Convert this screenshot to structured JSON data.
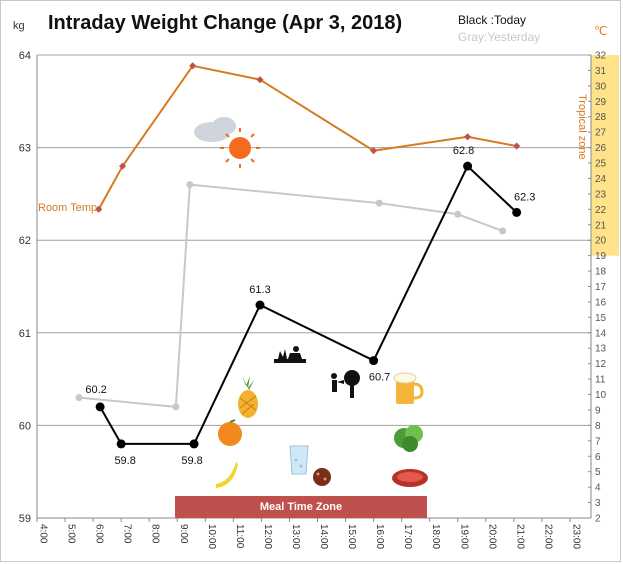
{
  "chart_data": {
    "type": "line",
    "title": "Intraday Weight Change (Apr 3, 2018)",
    "legend": {
      "today": "Black :Today",
      "yesterday": "Gray:Yesterday"
    },
    "left_axis": {
      "unit": "kg",
      "ylim": [
        59,
        64
      ],
      "ticks": [
        "59",
        "60",
        "61",
        "62",
        "63",
        "64"
      ]
    },
    "right_axis": {
      "unit": "℃",
      "ylim": [
        2,
        32
      ],
      "ticks": [
        "2",
        "3",
        "4",
        "5",
        "6",
        "7",
        "8",
        "9",
        "10",
        "11",
        "12",
        "13",
        "14",
        "15",
        "16",
        "17",
        "18",
        "19",
        "20",
        "21",
        "22",
        "23",
        "24",
        "25",
        "26",
        "27",
        "28",
        "29",
        "30",
        "31",
        "32"
      ],
      "highlight_range": [
        19,
        32
      ],
      "highlight_label": "Tropical zone"
    },
    "x_axis": {
      "ticks": [
        "4:00",
        "5:00",
        "6:00",
        "7:00",
        "8:00",
        "9:00",
        "10:00",
        "11:00",
        "12:00",
        "13:00",
        "14:00",
        "15:00",
        "16:00",
        "17:00",
        "18:00",
        "19:00",
        "20:00",
        "21:00",
        "22:00",
        "23:00"
      ]
    },
    "series": [
      {
        "name": "Today",
        "color": "#000000",
        "x": [
          6.25,
          7.0,
          9.6,
          11.95,
          16.0,
          19.35,
          21.1
        ],
        "y": [
          60.2,
          59.8,
          59.8,
          61.3,
          60.7,
          62.8,
          62.3
        ],
        "labels": [
          "60.2",
          "59.8",
          "59.8",
          "61.3",
          "60.7",
          "62.8",
          "62.3"
        ]
      },
      {
        "name": "Yesterday",
        "color": "#c8c8c8",
        "x": [
          5.5,
          8.95,
          9.45,
          16.2,
          19.0,
          20.6
        ],
        "y": [
          60.3,
          60.2,
          62.6,
          62.4,
          62.28,
          62.1
        ]
      },
      {
        "name": "Room Temp.",
        "color": "#d77a1e",
        "axis": "right",
        "x": [
          6.2,
          7.05,
          9.55,
          11.95,
          16.0,
          19.35,
          21.1
        ],
        "y": [
          22.0,
          24.8,
          31.3,
          30.4,
          25.8,
          26.7,
          26.1
        ]
      }
    ],
    "annotations": {
      "room_temp": "Room Temp.",
      "meal_zone": {
        "label": "Meal Time Zone",
        "x_range": [
          9.0,
          18.0
        ]
      }
    }
  },
  "colors": {
    "today": "#000000",
    "yesterday": "#c8c8c8",
    "temp": "#d77a1e",
    "meal": "#c0504d",
    "tropical": "#ffe28a"
  },
  "icons": [
    "cloud-sun-icon",
    "gardening-icon",
    "watering-tree-icon",
    "pineapple-icon",
    "orange-icon",
    "banana-icon",
    "water-glass-icon",
    "cookie-icon",
    "beer-icon",
    "lettuce-icon",
    "steak-icon"
  ]
}
